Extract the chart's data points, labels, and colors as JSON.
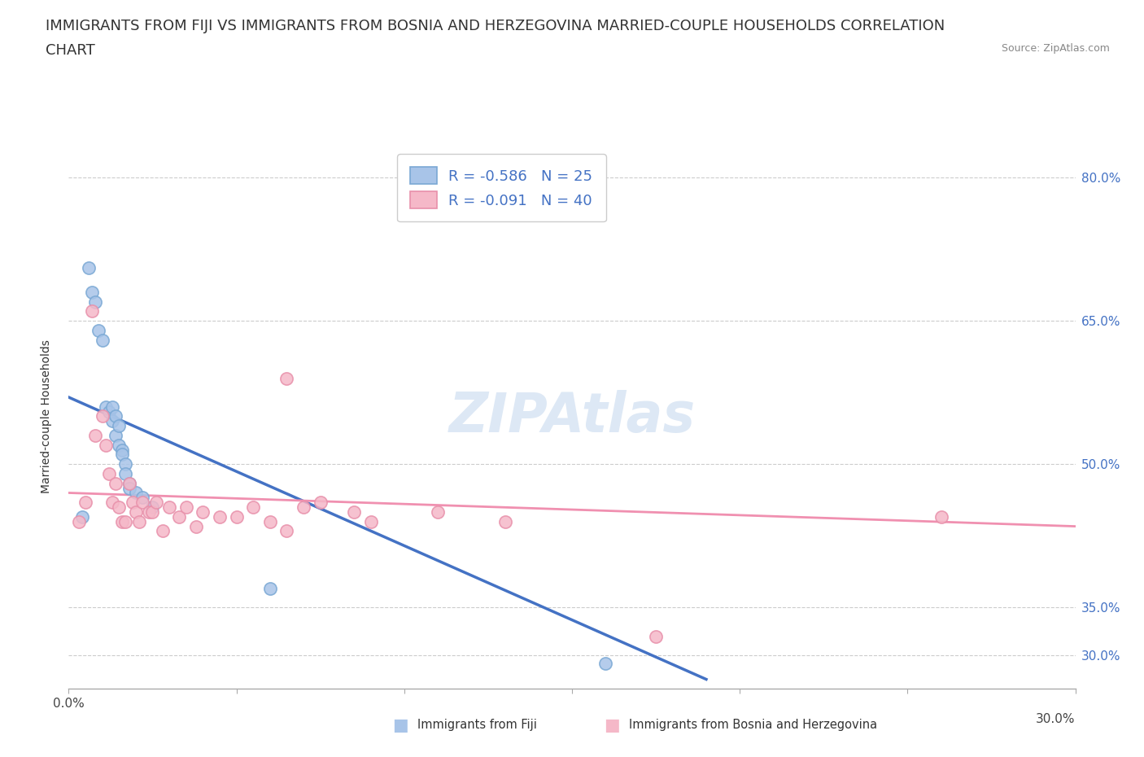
{
  "title_line1": "IMMIGRANTS FROM FIJI VS IMMIGRANTS FROM BOSNIA AND HERZEGOVINA MARRIED-COUPLE HOUSEHOLDS CORRELATION",
  "title_line2": "CHART",
  "source_text": "Source: ZipAtlas.com",
  "ylabel": "Married-couple Households",
  "ytick_labels": [
    "30.0%",
    "35.0%",
    "50.0%",
    "65.0%",
    "80.0%"
  ],
  "ytick_values": [
    0.3,
    0.35,
    0.5,
    0.65,
    0.8
  ],
  "xlim": [
    0.0,
    0.3
  ],
  "ylim": [
    0.265,
    0.835
  ],
  "fiji_R": "-0.586",
  "fiji_N": "25",
  "bosnia_R": "-0.091",
  "bosnia_N": "40",
  "fiji_color": "#a8c4e8",
  "fiji_edge_color": "#7aa8d4",
  "bosnia_color": "#f5b8c8",
  "bosnia_edge_color": "#e890aa",
  "fiji_line_color": "#4472c4",
  "bosnia_line_color": "#f090b0",
  "legend_text_color": "#4472c4",
  "watermark_color": "#dde8f5",
  "fiji_scatter_x": [
    0.004,
    0.006,
    0.007,
    0.008,
    0.009,
    0.01,
    0.011,
    0.012,
    0.013,
    0.013,
    0.014,
    0.014,
    0.015,
    0.015,
    0.016,
    0.016,
    0.017,
    0.017,
    0.018,
    0.018,
    0.02,
    0.022,
    0.025,
    0.06,
    0.16
  ],
  "fiji_scatter_y": [
    0.445,
    0.705,
    0.68,
    0.67,
    0.64,
    0.63,
    0.56,
    0.555,
    0.56,
    0.545,
    0.55,
    0.53,
    0.54,
    0.52,
    0.515,
    0.51,
    0.5,
    0.49,
    0.48,
    0.475,
    0.47,
    0.465,
    0.455,
    0.37,
    0.292
  ],
  "bosnia_scatter_x": [
    0.003,
    0.005,
    0.007,
    0.008,
    0.01,
    0.011,
    0.012,
    0.013,
    0.014,
    0.015,
    0.016,
    0.017,
    0.018,
    0.019,
    0.02,
    0.021,
    0.022,
    0.024,
    0.025,
    0.026,
    0.028,
    0.03,
    0.033,
    0.035,
    0.038,
    0.04,
    0.045,
    0.05,
    0.055,
    0.06,
    0.065,
    0.065,
    0.07,
    0.075,
    0.085,
    0.09,
    0.11,
    0.13,
    0.175,
    0.26
  ],
  "bosnia_scatter_y": [
    0.44,
    0.46,
    0.66,
    0.53,
    0.55,
    0.52,
    0.49,
    0.46,
    0.48,
    0.455,
    0.44,
    0.44,
    0.48,
    0.46,
    0.45,
    0.44,
    0.46,
    0.45,
    0.45,
    0.46,
    0.43,
    0.455,
    0.445,
    0.455,
    0.435,
    0.45,
    0.445,
    0.445,
    0.455,
    0.44,
    0.59,
    0.43,
    0.455,
    0.46,
    0.45,
    0.44,
    0.45,
    0.44,
    0.32,
    0.445
  ],
  "fiji_trendline_x": [
    0.0,
    0.19
  ],
  "fiji_trendline_y": [
    0.57,
    0.275
  ],
  "bosnia_trendline_x": [
    0.0,
    0.3
  ],
  "bosnia_trendline_y": [
    0.47,
    0.435
  ],
  "grid_color": "#cccccc",
  "background_color": "#ffffff",
  "title_fontsize": 13,
  "axis_label_fontsize": 10,
  "tick_fontsize": 11,
  "legend_fontsize": 13,
  "scatter_size": 120,
  "bottom_legend_fiji": "Immigrants from Fiji",
  "bottom_legend_bosnia": "Immigrants from Bosnia and Herzegovina"
}
